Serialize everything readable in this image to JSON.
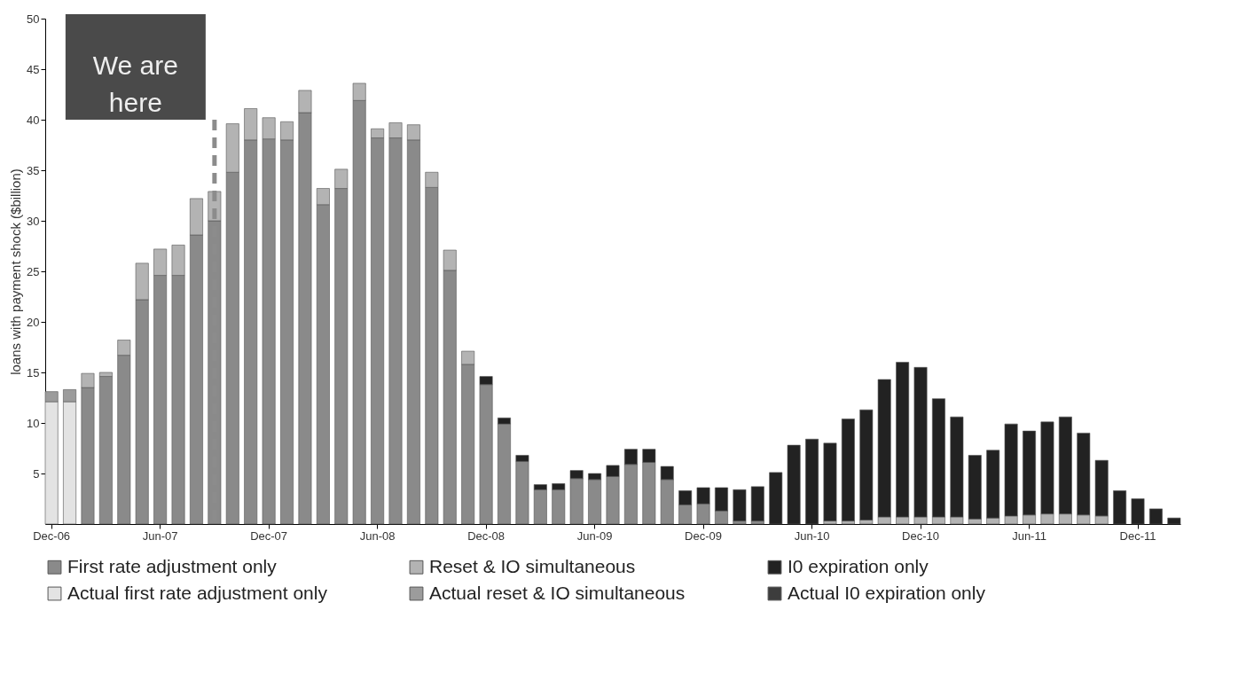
{
  "chart_data": {
    "type": "bar",
    "stacked": true,
    "ylabel": "loans with payment shock ($billion)",
    "x": [
      "2006-12",
      "2007-01",
      "2007-02",
      "2007-03",
      "2007-04",
      "2007-05",
      "2007-06",
      "2007-07",
      "2007-08",
      "2007-09",
      "2007-10",
      "2007-11",
      "2007-12",
      "2008-01",
      "2008-02",
      "2008-03",
      "2008-04",
      "2008-05",
      "2008-06",
      "2008-07",
      "2008-08",
      "2008-09",
      "2008-10",
      "2008-11",
      "2008-12",
      "2009-01",
      "2009-02",
      "2009-03",
      "2009-04",
      "2009-05",
      "2009-06",
      "2009-07",
      "2009-08",
      "2009-09",
      "2009-10",
      "2009-11",
      "2009-12",
      "2010-01",
      "2010-02",
      "2010-03",
      "2010-04",
      "2010-05",
      "2010-06",
      "2010-07",
      "2010-08",
      "2010-09",
      "2010-10",
      "2010-11",
      "2010-12",
      "2011-01",
      "2011-02",
      "2011-03",
      "2011-04",
      "2011-05",
      "2011-06",
      "2011-07",
      "2011-08",
      "2011-09",
      "2011-10",
      "2011-11",
      "2011-12",
      "2012-01",
      "2012-02"
    ],
    "xticks": [
      {
        "value": "2006-12",
        "label": "Dec-06"
      },
      {
        "value": "2007-06",
        "label": "Jun-07"
      },
      {
        "value": "2007-12",
        "label": "Dec-07"
      },
      {
        "value": "2008-06",
        "label": "Jun-08"
      },
      {
        "value": "2008-12",
        "label": "Dec-08"
      },
      {
        "value": "2009-06",
        "label": "Jun-09"
      },
      {
        "value": "2009-12",
        "label": "Dec-09"
      },
      {
        "value": "2010-06",
        "label": "Jun-10"
      },
      {
        "value": "2010-12",
        "label": "Dec-10"
      },
      {
        "value": "2011-06",
        "label": "Jun-11"
      },
      {
        "value": "2011-12",
        "label": "Dec-11"
      }
    ],
    "xlim": [
      "2006-11-20",
      "2012-02-12"
    ],
    "ylim": [
      0,
      50
    ],
    "yticks": [
      5,
      10,
      15,
      20,
      25,
      30,
      35,
      40,
      45,
      50
    ],
    "grid": false,
    "legend": "bottom",
    "series": [
      {
        "name": "First rate adjustment only",
        "color": "#8a8a8a",
        "values": [
          null,
          null,
          13.5,
          14.6,
          16.7,
          22.2,
          24.6,
          24.6,
          28.6,
          30.0,
          34.8,
          38.0,
          38.1,
          38.0,
          40.7,
          31.6,
          33.2,
          41.9,
          38.2,
          38.2,
          38.0,
          33.3,
          25.1,
          15.8,
          13.8,
          9.9,
          6.2,
          3.4,
          3.4,
          4.5,
          4.4,
          4.7,
          5.9,
          6.1,
          4.4,
          1.9,
          2.0,
          1.3,
          0.3,
          0.3,
          null,
          null,
          null,
          null,
          null,
          null,
          null,
          null,
          null,
          null,
          null,
          null,
          null,
          null,
          null,
          null,
          null,
          null,
          null,
          null,
          null,
          null,
          null
        ]
      },
      {
        "name": "Reset & IO simultaneous",
        "color": "#b3b3b3",
        "values": [
          null,
          null,
          1.4,
          0.4,
          1.5,
          3.6,
          2.6,
          3.0,
          3.6,
          2.9,
          4.8,
          3.1,
          2.1,
          1.8,
          2.2,
          1.6,
          1.9,
          1.7,
          0.9,
          1.5,
          1.5,
          1.5,
          2.0,
          1.3,
          null,
          null,
          null,
          null,
          null,
          null,
          null,
          null,
          null,
          null,
          null,
          null,
          null,
          null,
          null,
          null,
          null,
          null,
          null,
          0.3,
          0.3,
          0.4,
          0.7,
          0.7,
          0.7,
          0.7,
          0.7,
          0.5,
          0.6,
          0.8,
          0.9,
          1.0,
          1.0,
          0.9,
          0.8,
          null,
          null,
          null,
          null
        ]
      },
      {
        "name": "I0 expiration only",
        "color": "#222222",
        "values": [
          null,
          null,
          null,
          null,
          null,
          null,
          null,
          null,
          null,
          null,
          null,
          null,
          null,
          null,
          null,
          null,
          null,
          null,
          null,
          null,
          null,
          null,
          null,
          null,
          0.8,
          0.6,
          0.6,
          0.5,
          0.6,
          0.8,
          0.6,
          1.1,
          1.5,
          1.3,
          1.3,
          1.4,
          1.6,
          2.3,
          3.1,
          3.4,
          5.1,
          7.8,
          8.4,
          7.7,
          10.1,
          10.9,
          13.6,
          15.3,
          14.8,
          11.7,
          9.9,
          6.3,
          6.7,
          9.1,
          8.3,
          9.1,
          9.6,
          8.1,
          5.5,
          3.3,
          2.5,
          1.5,
          0.6
        ]
      },
      {
        "name": "Actual first rate adjustment only",
        "color": "#e3e3e3",
        "values": [
          12.1,
          12.1,
          null,
          null,
          null,
          null,
          null,
          null,
          null,
          null,
          null,
          null,
          null,
          null,
          null,
          null,
          null,
          null,
          null,
          null,
          null,
          null,
          null,
          null,
          null,
          null,
          null,
          null,
          null,
          null,
          null,
          null,
          null,
          null,
          null,
          null,
          null,
          null,
          null,
          null,
          null,
          null,
          null,
          null,
          null,
          null,
          null,
          null,
          null,
          null,
          null,
          null,
          null,
          null,
          null,
          null,
          null,
          null,
          null,
          null,
          null,
          null,
          null
        ]
      },
      {
        "name": "Actual reset & IO simultaneous",
        "color": "#9c9c9c",
        "values": [
          1.0,
          1.2,
          null,
          null,
          null,
          null,
          null,
          null,
          null,
          null,
          null,
          null,
          null,
          null,
          null,
          null,
          null,
          null,
          null,
          null,
          null,
          null,
          null,
          null,
          null,
          null,
          null,
          null,
          null,
          null,
          null,
          null,
          null,
          null,
          null,
          null,
          null,
          null,
          null,
          null,
          null,
          null,
          null,
          null,
          null,
          null,
          null,
          null,
          null,
          null,
          null,
          null,
          null,
          null,
          null,
          null,
          null,
          null,
          null,
          null,
          null,
          null,
          null
        ]
      },
      {
        "name": "Actual I0 expiration only",
        "color": "#3d3d3d",
        "values": [
          null,
          null,
          null,
          null,
          null,
          null,
          null,
          null,
          null,
          null,
          null,
          null,
          null,
          null,
          null,
          null,
          null,
          null,
          null,
          null,
          null,
          null,
          null,
          null,
          null,
          null,
          null,
          null,
          null,
          null,
          null,
          null,
          null,
          null,
          null,
          null,
          null,
          null,
          null,
          null,
          null,
          null,
          null,
          null,
          null,
          null,
          null,
          null,
          null,
          null,
          null,
          null,
          null,
          null,
          null,
          null,
          null,
          null,
          null,
          null,
          null,
          null,
          null
        ]
      }
    ],
    "ref_lines": [
      {
        "axis": "x",
        "value": "2007-09",
        "label": "We are here",
        "color": "#8c8c8c",
        "line_style": "dashed"
      }
    ]
  }
}
